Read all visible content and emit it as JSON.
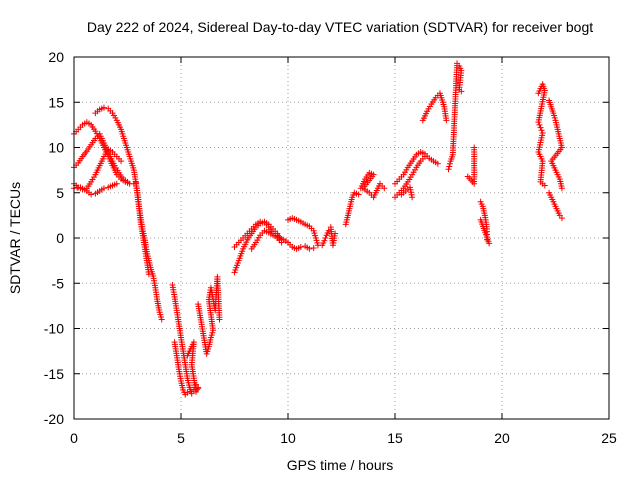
{
  "chart_data": {
    "type": "scatter",
    "title": "Day 222 of 2024, Sidereal Day-to-day VTEC variation (SDTVAR) for receiver bogt",
    "xlabel": "GPS time / hours",
    "ylabel": "SDTVAR / TECUs",
    "xlim": [
      0,
      25
    ],
    "ylim": [
      -20,
      20
    ],
    "xticks": [
      "0",
      "5",
      "10",
      "15",
      "20",
      "25"
    ],
    "yticks": [
      "-20",
      "-15",
      "-10",
      "-5",
      "0",
      "5",
      "10",
      "15",
      "20"
    ],
    "grid": true,
    "marker": "plus",
    "series_color": "#ff0000",
    "series": [
      {
        "points": [
          [
            0,
            11.5
          ],
          [
            0.2,
            12
          ],
          [
            0.4,
            12.5
          ],
          [
            0.6,
            12.8
          ],
          [
            0.8,
            12.5
          ],
          [
            1.0,
            11.8
          ],
          [
            1.2,
            11
          ],
          [
            1.4,
            10
          ],
          [
            1.6,
            9
          ],
          [
            1.8,
            8
          ],
          [
            2.0,
            7
          ],
          [
            2.2,
            6.5
          ],
          [
            2.4,
            6.2
          ],
          [
            2.6,
            6.0
          ],
          [
            2.8,
            6.0
          ],
          [
            2.9,
            6.1
          ]
        ]
      },
      {
        "points": [
          [
            0,
            7.8
          ],
          [
            0.2,
            8.3
          ],
          [
            0.4,
            9
          ],
          [
            0.6,
            9.6
          ],
          [
            0.8,
            10.3
          ],
          [
            1.0,
            11
          ],
          [
            1.2,
            11.5
          ],
          [
            1.3,
            11
          ],
          [
            1.5,
            10
          ],
          [
            1.7,
            9
          ],
          [
            1.9,
            8
          ],
          [
            2.1,
            7.2
          ],
          [
            2.3,
            6.5
          ],
          [
            2.5,
            6.2
          ]
        ]
      },
      {
        "points": [
          [
            0,
            6.0
          ],
          [
            0.2,
            5.6
          ],
          [
            0.4,
            5.4
          ],
          [
            0.6,
            5.5
          ],
          [
            0.8,
            6.2
          ],
          [
            1.0,
            7
          ],
          [
            1.2,
            8
          ],
          [
            1.4,
            9
          ],
          [
            1.6,
            9.8
          ],
          [
            1.8,
            9.5
          ],
          [
            2.0,
            9
          ],
          [
            2.2,
            8.5
          ]
        ]
      },
      {
        "points": [
          [
            0,
            5.5
          ],
          [
            0.3,
            5.6
          ],
          [
            0.6,
            5.2
          ],
          [
            0.8,
            4.8
          ],
          [
            1.0,
            4.9
          ],
          [
            1.2,
            5.2
          ],
          [
            1.4,
            5.5
          ],
          [
            1.6,
            5.6
          ],
          [
            1.8,
            5.8
          ],
          [
            2.0,
            6.0
          ]
        ]
      },
      {
        "points": [
          [
            1.0,
            13.8
          ],
          [
            1.2,
            14.2
          ],
          [
            1.4,
            14.4
          ],
          [
            1.6,
            14.3
          ],
          [
            1.8,
            13.8
          ],
          [
            2.0,
            13
          ],
          [
            2.2,
            12
          ],
          [
            2.4,
            10.5
          ],
          [
            2.6,
            9
          ],
          [
            2.8,
            7.5
          ],
          [
            2.9,
            6
          ],
          [
            3.0,
            4.5
          ],
          [
            3.1,
            2
          ],
          [
            3.2,
            0.5
          ],
          [
            3.3,
            -1
          ],
          [
            3.4,
            -2.5
          ],
          [
            3.5,
            -4
          ]
        ]
      },
      {
        "points": [
          [
            2.9,
            6.0
          ],
          [
            3.0,
            4
          ],
          [
            3.1,
            2.5
          ],
          [
            3.2,
            1
          ],
          [
            3.3,
            0
          ],
          [
            3.4,
            -1.5
          ],
          [
            3.5,
            -2.5
          ],
          [
            3.6,
            -3.5
          ],
          [
            3.7,
            -4.2
          ],
          [
            3.8,
            -5.5
          ],
          [
            3.9,
            -7
          ],
          [
            4.0,
            -8.2
          ],
          [
            4.1,
            -9
          ]
        ]
      },
      {
        "points": [
          [
            4.6,
            -5.2
          ],
          [
            4.7,
            -6.5
          ],
          [
            4.8,
            -8
          ],
          [
            4.9,
            -9.5
          ],
          [
            5.0,
            -11
          ],
          [
            5.1,
            -12.5
          ],
          [
            5.2,
            -14
          ],
          [
            5.3,
            -15.5
          ],
          [
            5.4,
            -16.5
          ],
          [
            5.5,
            -17.2
          ],
          [
            5.6,
            -16.8
          ],
          [
            5.7,
            -16.2
          ],
          [
            5.8,
            -16.6
          ]
        ]
      },
      {
        "points": [
          [
            4.7,
            -11.5
          ],
          [
            4.8,
            -13
          ],
          [
            4.9,
            -14.5
          ],
          [
            5.0,
            -15.8
          ],
          [
            5.1,
            -16.8
          ],
          [
            5.2,
            -17.3
          ],
          [
            5.3,
            -17.1
          ]
        ]
      },
      {
        "points": [
          [
            5.3,
            -13
          ],
          [
            5.4,
            -12.5
          ],
          [
            5.5,
            -12
          ],
          [
            5.6,
            -11.5
          ],
          [
            5.5,
            -14
          ],
          [
            5.6,
            -15.5
          ],
          [
            5.7,
            -17
          ],
          [
            5.8,
            -16.5
          ]
        ]
      },
      {
        "points": [
          [
            5.8,
            -7.3
          ],
          [
            6.2,
            -12.8
          ],
          [
            6.3,
            -12
          ],
          [
            6.4,
            -11
          ],
          [
            6.5,
            -10.2
          ],
          [
            6.3,
            -6.8
          ],
          [
            6.4,
            -5.5
          ],
          [
            6.6,
            -8
          ],
          [
            6.7,
            -4.3
          ],
          [
            6.8,
            -9
          ]
        ]
      },
      {
        "points": [
          [
            7.5,
            -3.8
          ],
          [
            7.7,
            -2.5
          ],
          [
            7.9,
            -1.2
          ],
          [
            8.1,
            -0.2
          ],
          [
            8.3,
            0.5
          ],
          [
            8.5,
            1.2
          ],
          [
            8.7,
            1.6
          ],
          [
            8.9,
            1.8
          ],
          [
            9.1,
            1.5
          ],
          [
            9.3,
            1
          ],
          [
            9.5,
            0.5
          ],
          [
            9.6,
            -0.2
          ]
        ]
      },
      {
        "points": [
          [
            7.5,
            -1
          ],
          [
            7.7,
            -0.5
          ],
          [
            7.9,
            0
          ],
          [
            8.1,
            0.5
          ],
          [
            8.3,
            1
          ],
          [
            8.5,
            1.5
          ],
          [
            8.7,
            1.8
          ],
          [
            8.9,
            1.7
          ],
          [
            9.1,
            1.2
          ],
          [
            9.3,
            0.5
          ],
          [
            9.5,
            0
          ],
          [
            9.7,
            -0.5
          ]
        ]
      },
      {
        "points": [
          [
            8.3,
            -1.2
          ],
          [
            8.5,
            -0.5
          ],
          [
            8.7,
            0.3
          ],
          [
            8.9,
            0.8
          ],
          [
            9.1,
            0.6
          ],
          [
            9.3,
            0.3
          ],
          [
            9.6,
            0.1
          ]
        ]
      },
      {
        "points": [
          [
            10.0,
            2
          ],
          [
            10.2,
            2.2
          ],
          [
            10.4,
            2
          ],
          [
            10.6,
            1.8
          ],
          [
            10.8,
            1.5
          ],
          [
            11.0,
            1.3
          ],
          [
            11.2,
            0.8
          ],
          [
            11.4,
            -0.8
          ]
        ]
      },
      {
        "points": [
          [
            9.6,
            0
          ],
          [
            9.8,
            -0.2
          ],
          [
            10.0,
            -0.5
          ],
          [
            10.2,
            -1
          ],
          [
            10.4,
            -1.2
          ],
          [
            10.6,
            -1
          ],
          [
            10.8,
            -0.9
          ],
          [
            11.0,
            -1.2
          ],
          [
            11.2,
            -1.1
          ]
        ]
      },
      {
        "points": [
          [
            11.6,
            -0.8
          ],
          [
            11.7,
            -0.3
          ],
          [
            11.8,
            0.3
          ],
          [
            11.9,
            0.8
          ],
          [
            12.0,
            1.2
          ],
          [
            12.1,
            -0.8
          ],
          [
            12.2,
            0.5
          ]
        ]
      },
      {
        "points": [
          [
            12.7,
            1.5
          ],
          [
            12.8,
            2.5
          ],
          [
            12.9,
            3.5
          ],
          [
            13.0,
            4.5
          ],
          [
            13.1,
            5.0
          ],
          [
            13.3,
            4.8
          ]
        ]
      },
      {
        "points": [
          [
            13.4,
            5.5
          ],
          [
            13.6,
            6.5
          ],
          [
            13.8,
            7.2
          ],
          [
            14.0,
            7
          ],
          [
            13.5,
            5.5
          ],
          [
            13.8,
            5
          ],
          [
            14.0,
            4.5
          ],
          [
            14.3,
            6.0
          ],
          [
            14.5,
            5.5
          ]
        ]
      },
      {
        "points": [
          [
            15.0,
            6.0
          ],
          [
            15.2,
            6.5
          ],
          [
            15.4,
            7
          ],
          [
            15.6,
            7.8
          ],
          [
            15.8,
            8.5
          ],
          [
            16.0,
            9.2
          ],
          [
            16.2,
            9.5
          ],
          [
            16.4,
            9.3
          ],
          [
            16.6,
            8.8
          ],
          [
            16.8,
            8.5
          ],
          [
            17.0,
            8.2
          ]
        ]
      },
      {
        "points": [
          [
            15.0,
            4.5
          ],
          [
            15.2,
            5
          ],
          [
            15.4,
            5.5
          ],
          [
            15.6,
            6.2
          ],
          [
            15.8,
            7
          ],
          [
            16.0,
            7.8
          ],
          [
            16.2,
            8.5
          ],
          [
            16.4,
            9
          ]
        ]
      },
      {
        "points": [
          [
            15.3,
            4.8
          ],
          [
            15.5,
            5.2
          ],
          [
            15.7,
            5.6
          ],
          [
            15.8,
            4.5
          ]
        ]
      },
      {
        "points": [
          [
            16.3,
            13
          ],
          [
            16.5,
            14
          ],
          [
            16.7,
            14.8
          ],
          [
            16.9,
            15.5
          ],
          [
            17.1,
            16
          ],
          [
            17.3,
            14.5
          ],
          [
            17.4,
            13
          ]
        ]
      },
      {
        "points": [
          [
            17.5,
            7.6
          ],
          [
            17.6,
            8.5
          ],
          [
            17.7,
            9.2
          ],
          [
            17.9,
            19.3
          ],
          [
            18.0,
            19
          ],
          [
            18.1,
            18.5
          ],
          [
            18.0,
            16.4
          ],
          [
            18.1,
            16.2
          ]
        ]
      },
      {
        "points": [
          [
            18.7,
            10
          ],
          [
            18.7,
            9
          ],
          [
            18.7,
            6
          ],
          [
            18.4,
            6.8
          ]
        ]
      },
      {
        "points": [
          [
            19.0,
            4
          ],
          [
            19.1,
            3.5
          ],
          [
            19.2,
            2.5
          ],
          [
            19.3,
            1
          ],
          [
            19.3,
            -0.2
          ],
          [
            19.4,
            -0.6
          ],
          [
            19.0,
            2
          ]
        ]
      },
      {
        "points": [
          [
            21.7,
            16
          ],
          [
            21.8,
            16.5
          ],
          [
            21.9,
            17
          ],
          [
            22.0,
            16.3
          ],
          [
            21.7,
            12.8
          ],
          [
            21.8,
            12.2
          ],
          [
            21.9,
            11.6
          ],
          [
            21.7,
            9.5
          ],
          [
            21.8,
            9
          ],
          [
            21.9,
            8.5
          ],
          [
            21.8,
            6.2
          ],
          [
            21.9,
            6
          ],
          [
            22.0,
            5.8
          ]
        ]
      },
      {
        "points": [
          [
            22.2,
            15.2
          ],
          [
            22.3,
            14.5
          ],
          [
            22.4,
            13.8
          ],
          [
            22.5,
            13
          ],
          [
            22.6,
            12
          ],
          [
            22.7,
            11
          ],
          [
            22.8,
            10
          ],
          [
            22.3,
            8.5
          ],
          [
            22.4,
            8
          ],
          [
            22.5,
            7.5
          ],
          [
            22.6,
            7
          ],
          [
            22.7,
            6.5
          ],
          [
            22.8,
            5.5
          ]
        ]
      },
      {
        "points": [
          [
            22.2,
            5
          ],
          [
            22.3,
            4.5
          ],
          [
            22.4,
            4
          ],
          [
            22.5,
            3.5
          ],
          [
            22.6,
            3
          ],
          [
            22.7,
            2.5
          ],
          [
            22.8,
            2.2
          ]
        ]
      }
    ]
  }
}
